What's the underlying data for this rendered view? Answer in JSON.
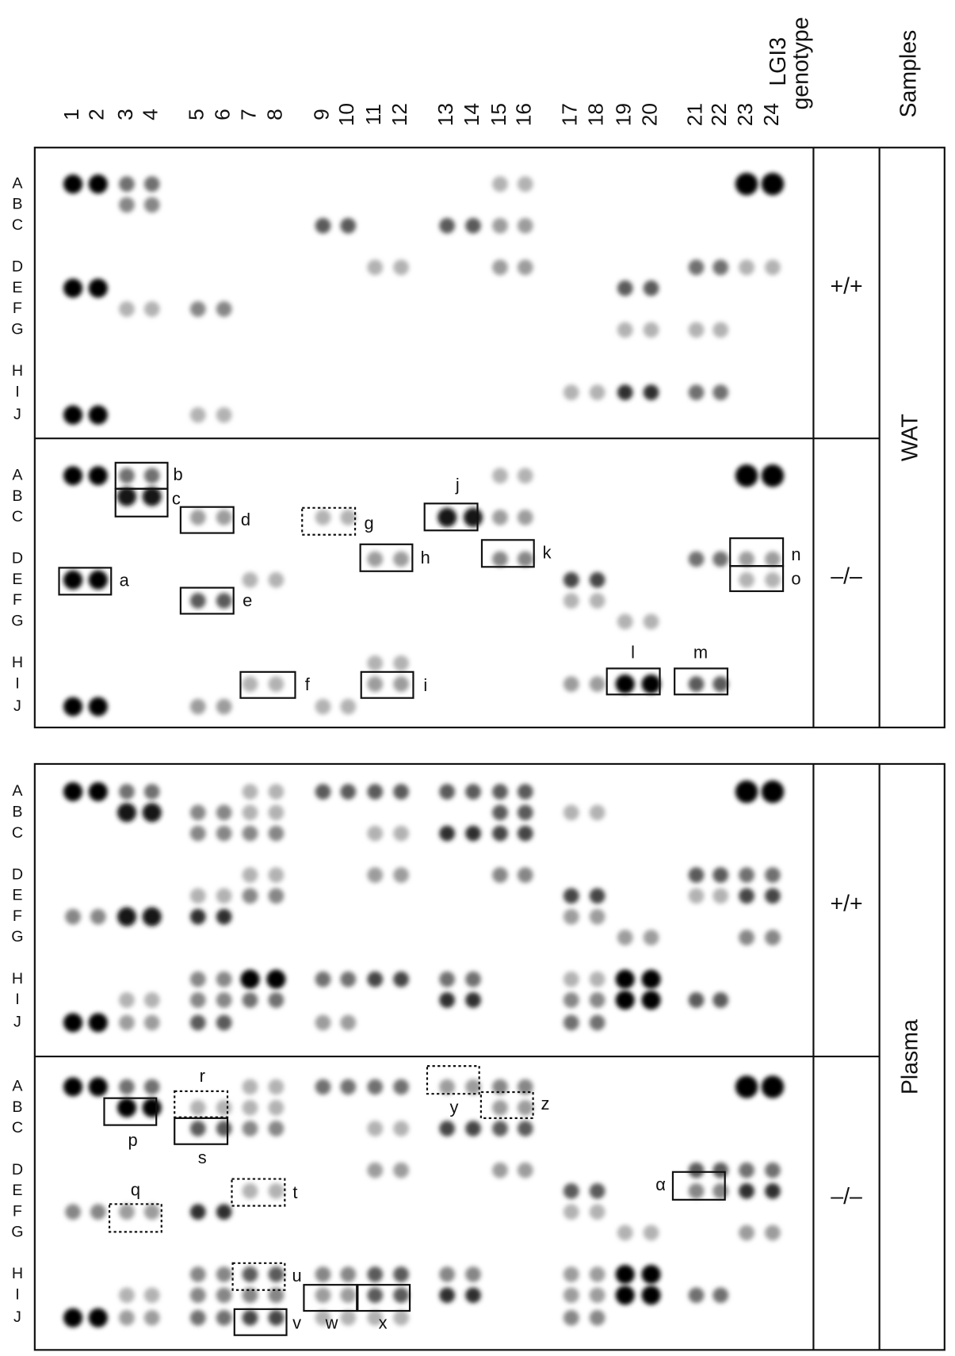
{
  "columns": [
    "1",
    "2",
    "3",
    "4",
    "5",
    "6",
    "7",
    "8",
    "9",
    "10",
    "11",
    "12",
    "13",
    "14",
    "15",
    "16",
    "17",
    "18",
    "19",
    "20",
    "21",
    "22",
    "23",
    "24"
  ],
  "rows": [
    "A",
    "B",
    "C",
    "D",
    "E",
    "F",
    "G",
    "H",
    "I",
    "J"
  ],
  "header": {
    "genotype_lines": [
      "LGI3",
      "genotype"
    ],
    "samples": "Samples"
  },
  "panels": [
    {
      "sample": "WAT",
      "groups": [
        {
          "genotype": "+/+"
        },
        {
          "genotype": "–/–"
        }
      ]
    },
    {
      "sample": "Plasma",
      "groups": [
        {
          "genotype": "+/+"
        },
        {
          "genotype": "–/–"
        }
      ]
    }
  ],
  "annotations": [
    "b",
    "c",
    "d",
    "g",
    "j",
    "h",
    "k",
    "n",
    "o",
    "a",
    "e",
    "l",
    "m",
    "f",
    "i",
    "r",
    "s",
    "p",
    "y",
    "z",
    "t",
    "q",
    "α",
    "u",
    "v",
    "w",
    "x"
  ]
}
